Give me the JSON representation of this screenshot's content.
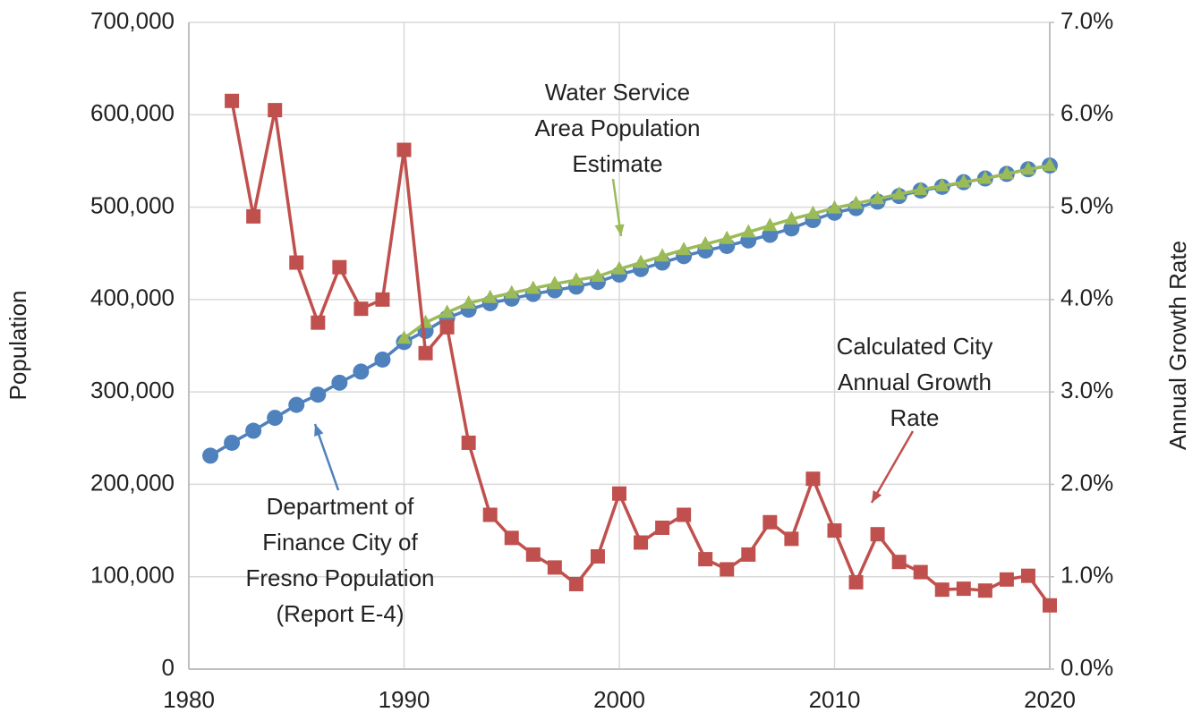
{
  "chart_data": {
    "type": "line",
    "ylabel": "Population",
    "y2label": "Annual Growth Rate",
    "xlim": [
      1980,
      2020
    ],
    "xticks": [
      1980,
      1990,
      2000,
      2010,
      2020
    ],
    "ylim": [
      0,
      700000
    ],
    "yticks": [
      0,
      {
        "value": 100000,
        "label": "100,000"
      },
      {
        "value": 200000,
        "label": "200,000"
      },
      {
        "value": 300000,
        "label": "300,000"
      },
      {
        "value": 400000,
        "label": "400,000"
      },
      {
        "value": 500000,
        "label": "500,000"
      },
      {
        "value": 600000,
        "label": "600,000"
      },
      {
        "value": 700000,
        "label": "700,000"
      }
    ],
    "y2lim": [
      0,
      7
    ],
    "y2ticks": [
      {
        "value": 0,
        "label": "0.0%"
      },
      {
        "value": 1,
        "label": "1.0%"
      },
      {
        "value": 2,
        "label": "2.0%"
      },
      {
        "value": 3,
        "label": "3.0%"
      },
      {
        "value": 4,
        "label": "4.0%"
      },
      {
        "value": 5,
        "label": "5.0%"
      },
      {
        "value": 6,
        "label": "6.0%"
      },
      {
        "value": 7,
        "label": "7.0%"
      }
    ],
    "grid": true,
    "series": [
      {
        "name": "Department of Finance City of Fresno Population (Report E-4)",
        "color": "#4f81bd",
        "marker": "circle",
        "x": [
          1981,
          1982,
          1983,
          1984,
          1985,
          1986,
          1987,
          1988,
          1989,
          1990,
          1991,
          1992,
          1993,
          1994,
          1995,
          1996,
          1997,
          1998,
          1999,
          2000,
          2001,
          2002,
          2003,
          2004,
          2005,
          2006,
          2007,
          2008,
          2009,
          2010,
          2011,
          2012,
          2013,
          2014,
          2015,
          2016,
          2017,
          2018,
          2019,
          2020
        ],
        "values": [
          231000,
          245000,
          258000,
          272000,
          286000,
          297000,
          310000,
          322000,
          335000,
          354000,
          366000,
          380000,
          389000,
          396000,
          401000,
          406000,
          410000,
          414000,
          419000,
          427000,
          433000,
          440000,
          447000,
          453000,
          458000,
          464000,
          470000,
          477000,
          486000,
          494000,
          499000,
          506000,
          512000,
          518000,
          522000,
          527000,
          531000,
          536000,
          541000,
          545000
        ]
      },
      {
        "name": "Water Service Area Population Estimate",
        "color": "#9bbb59",
        "marker": "triangle",
        "x": [
          1990,
          1991,
          1992,
          1993,
          1994,
          1995,
          1996,
          1997,
          1998,
          1999,
          2000,
          2001,
          2002,
          2003,
          2004,
          2005,
          2006,
          2007,
          2008,
          2009,
          2010,
          2011,
          2012,
          2013,
          2014,
          2015,
          2016,
          2017,
          2018,
          2019,
          2020
        ],
        "values": [
          358000,
          375000,
          386000,
          396000,
          402000,
          407000,
          412000,
          417000,
          421000,
          425000,
          433000,
          440000,
          447000,
          454000,
          460000,
          466000,
          473000,
          480000,
          487000,
          493000,
          499000,
          504000,
          509000,
          514000,
          519000,
          523000,
          527000,
          531000,
          536000,
          541000,
          545000
        ]
      },
      {
        "name": "Calculated City Annual Growth Rate",
        "color": "#c0504d",
        "marker": "square",
        "axis": "y2",
        "x": [
          1982,
          1983,
          1984,
          1985,
          1986,
          1987,
          1988,
          1989,
          1990,
          1991,
          1992,
          1993,
          1994,
          1995,
          1996,
          1997,
          1998,
          1999,
          2000,
          2001,
          2002,
          2003,
          2004,
          2005,
          2006,
          2007,
          2008,
          2009,
          2010,
          2011,
          2012,
          2013,
          2014,
          2015,
          2016,
          2017,
          2018,
          2019,
          2020
        ],
        "values": [
          6.15,
          4.9,
          6.05,
          4.4,
          3.75,
          4.35,
          3.9,
          4.0,
          5.62,
          3.42,
          3.7,
          2.45,
          1.67,
          1.42,
          1.24,
          1.1,
          0.92,
          1.22,
          1.9,
          1.37,
          1.53,
          1.67,
          1.19,
          1.08,
          1.24,
          1.59,
          1.41,
          2.06,
          1.5,
          0.94,
          1.46,
          1.16,
          1.05,
          0.86,
          0.87,
          0.85,
          0.97,
          1.01,
          0.69
        ]
      }
    ],
    "annotations": [
      {
        "lines": [
          "Water Service",
          "Area Population",
          "Estimate"
        ]
      },
      {
        "lines": [
          "Calculated City",
          "Annual Growth",
          "Rate"
        ]
      },
      {
        "lines": [
          "Department of",
          "Finance City of",
          "Fresno Population",
          "(Report E-4)"
        ]
      }
    ]
  }
}
